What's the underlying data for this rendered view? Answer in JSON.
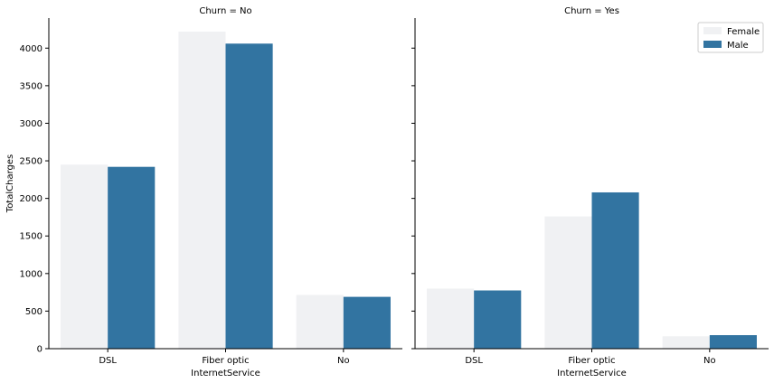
{
  "chart_data": {
    "type": "bar",
    "layout": "faceted",
    "ylabel": "TotalCharges",
    "xlabel": "InternetService",
    "ylim": [
      0,
      4400
    ],
    "yticks": [
      0,
      500,
      1000,
      1500,
      2000,
      2500,
      3000,
      3500,
      4000
    ],
    "categories": [
      "DSL",
      "Fiber optic",
      "No"
    ],
    "legend": {
      "placement": "top-right",
      "entries": [
        "Female",
        "Male"
      ]
    },
    "colors": {
      "Female": "#f0f1f3",
      "Male": "#3274a1"
    },
    "panels": [
      {
        "title": "Churn = No",
        "series": [
          {
            "name": "Female",
            "values": [
              2450,
              4220,
              715
            ]
          },
          {
            "name": "Male",
            "values": [
              2420,
              4060,
              690
            ]
          }
        ]
      },
      {
        "title": "Churn = Yes",
        "series": [
          {
            "name": "Female",
            "values": [
              800,
              1760,
              165
            ]
          },
          {
            "name": "Male",
            "values": [
              775,
              2080,
              180
            ]
          }
        ]
      }
    ]
  }
}
